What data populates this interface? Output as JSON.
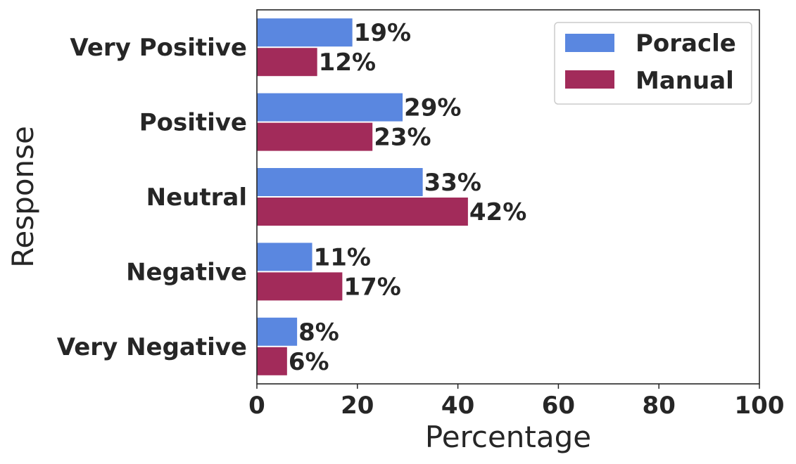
{
  "chart_data": {
    "type": "bar",
    "orientation": "horizontal",
    "categories": [
      "Very Positive",
      "Positive",
      "Neutral",
      "Negative",
      "Very Negative"
    ],
    "series": [
      {
        "name": "Poracle",
        "color": "#5a87e0",
        "values": [
          19,
          29,
          33,
          11,
          8
        ],
        "labels": [
          "19%",
          "29%",
          "33%",
          "11%",
          "8%"
        ]
      },
      {
        "name": "Manual",
        "color": "#a22b5a",
        "values": [
          12,
          23,
          42,
          17,
          6
        ],
        "labels": [
          "12%",
          "23%",
          "42%",
          "17%",
          "6%"
        ]
      }
    ],
    "xlabel": "Percentage",
    "ylabel": "Response",
    "xlim": [
      0,
      100
    ],
    "xticks": [
      "0",
      "20",
      "40",
      "60",
      "80",
      "100"
    ],
    "legend_position": "top-right",
    "grid": false
  }
}
